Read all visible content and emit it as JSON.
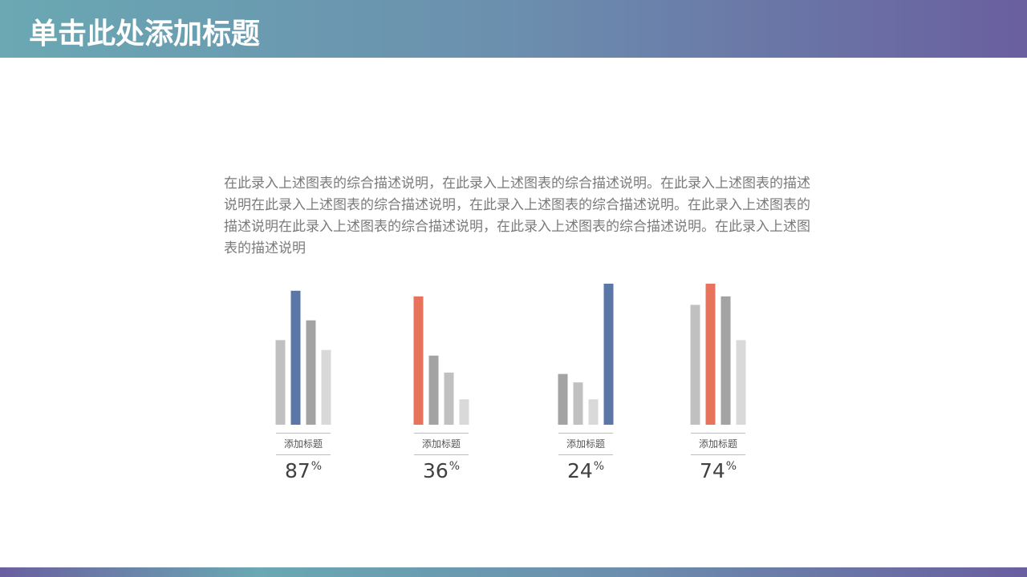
{
  "header": {
    "title": "单击此处添加标题"
  },
  "description": "在此录入上述图表的综合描述说明，在此录入上述图表的综合描述说明。在此录入上述图表的描述说明在此录入上述图表的综合描述说明，在此录入上述图表的综合描述说明。在此录入上述图表的描述说明在此录入上述图表的综合描述说明，在此录入上述图表的综合描述说明。在此录入上述图表的描述说明",
  "colors": {
    "header_start": "#6aa8b3",
    "header_end": "#6a5f9f",
    "blue": "#5b77a8",
    "red": "#e8735c",
    "gray_light": "#c0c0c0",
    "gray_mid": "#a3a3a3",
    "gray_pale": "#d9d9d9"
  },
  "chart_data": [
    {
      "type": "bar",
      "label": "添加标题",
      "percent": "87",
      "unit": "%",
      "values": [
        60,
        95,
        74,
        53
      ],
      "colors": [
        "#c0c0c0",
        "#5b77a8",
        "#a3a3a3",
        "#d9d9d9"
      ],
      "ylim": [
        0,
        100
      ]
    },
    {
      "type": "bar",
      "label": "添加标题",
      "percent": "36",
      "unit": "%",
      "values": [
        91,
        49,
        37,
        18
      ],
      "colors": [
        "#e8735c",
        "#a3a3a3",
        "#c0c0c0",
        "#d9d9d9"
      ],
      "ylim": [
        0,
        100
      ]
    },
    {
      "type": "bar",
      "label": "添加标题",
      "percent": "24",
      "unit": "%",
      "values": [
        36,
        30,
        18,
        100
      ],
      "colors": [
        "#a3a3a3",
        "#c0c0c0",
        "#d9d9d9",
        "#5b77a8"
      ],
      "ylim": [
        0,
        100
      ]
    },
    {
      "type": "bar",
      "label": "添加标题",
      "percent": "74",
      "unit": "%",
      "values": [
        85,
        100,
        91,
        60
      ],
      "colors": [
        "#c0c0c0",
        "#e8735c",
        "#a3a3a3",
        "#d9d9d9"
      ],
      "ylim": [
        0,
        100
      ]
    }
  ]
}
